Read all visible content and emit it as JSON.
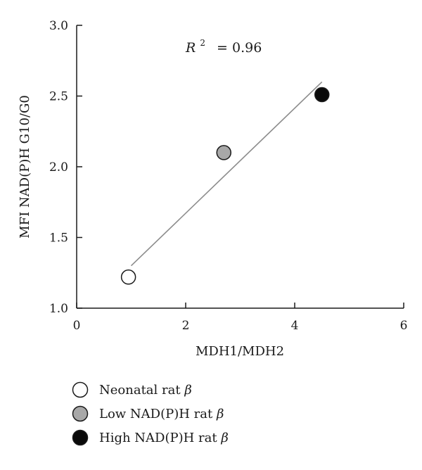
{
  "chart_data": {
    "type": "scatter",
    "xlabel": "MDH1/MDH2",
    "ylabel": "MFI NAD(P)H G10/G0",
    "xlim": [
      0,
      6
    ],
    "ylim": [
      1.0,
      3.0
    ],
    "xticks": [
      "0",
      "2",
      "4",
      "6"
    ],
    "yticks": [
      "1.0",
      "1.5",
      "2.0",
      "2.5",
      "3.0"
    ],
    "grid": false,
    "annotation": {
      "r_symbol": "R",
      "r_sup": "2",
      "r_value": "= 0.96"
    },
    "trendline": {
      "x": [
        1.0,
        4.5
      ],
      "y": [
        1.3,
        2.6
      ],
      "color": "#8c8c8c"
    },
    "legend_position": "bottom-left",
    "series": [
      {
        "name": "Neonatal rat β",
        "label_text": "Neonatal rat ",
        "label_symbol": "β",
        "color": "#ffffff",
        "x": [
          0.95
        ],
        "y": [
          1.22
        ]
      },
      {
        "name": "Low NAD(P)H rat β",
        "label_text": "Low NAD(P)H rat ",
        "label_symbol": "β",
        "color": "#a8a8a8",
        "x": [
          2.7
        ],
        "y": [
          2.1
        ]
      },
      {
        "name": "High NAD(P)H rat β",
        "label_text": "High NAD(P)H rat ",
        "label_symbol": "β",
        "color": "#0a0a0a",
        "x": [
          4.5
        ],
        "y": [
          2.51
        ]
      }
    ]
  }
}
